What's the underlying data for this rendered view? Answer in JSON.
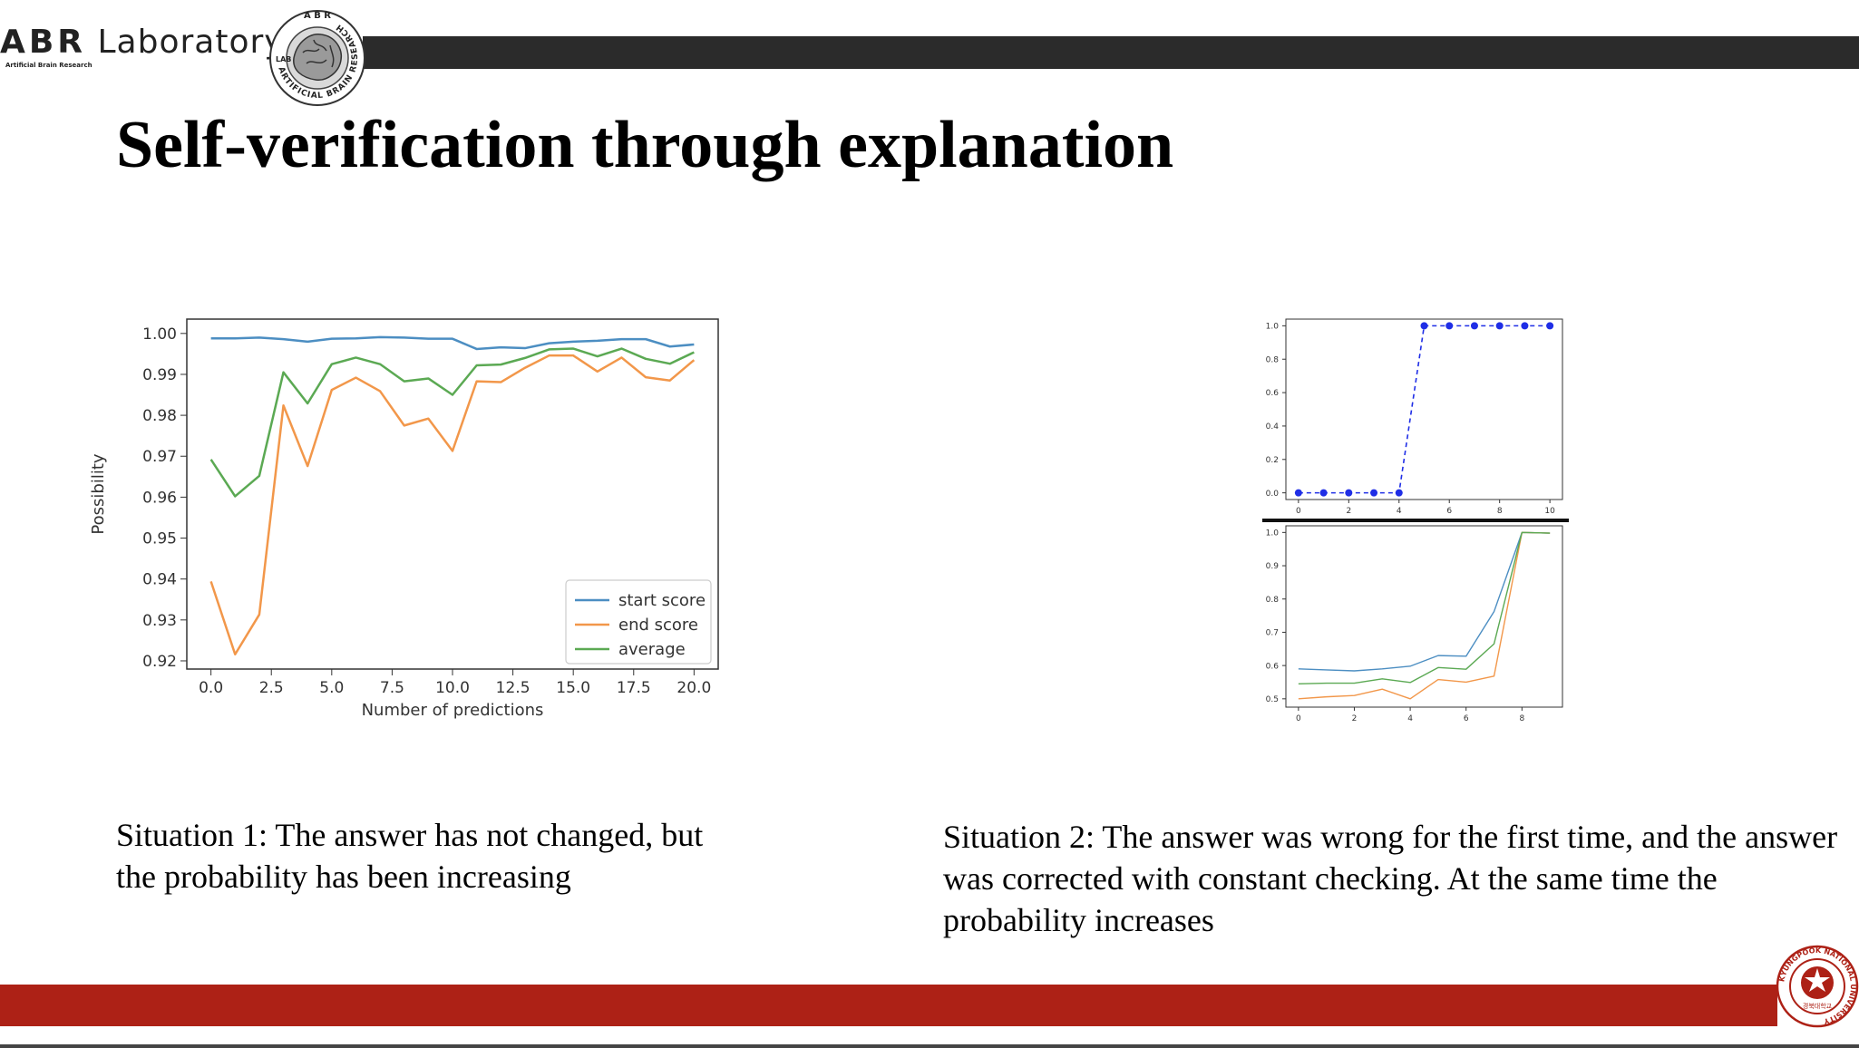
{
  "header": {
    "logo_abr": "ABR",
    "logo_lab": "Laboratory",
    "logo_sub": "Artificial Brain Research",
    "seal_top": "A B R",
    "seal_ring": "ARTIFICIAL BRAIN RESEARCH",
    "seal_lab": "LAB"
  },
  "slide": {
    "title": "Self-verification through explanation",
    "caption1": "Situation 1: The answer has not changed, but the probability has been increasing",
    "caption2": "Situation 2: The answer was wrong for the first time, and the answer was corrected with constant checking. At the same time the probability increases"
  },
  "footer": {
    "university_ring": "KYUNGPOOK NATIONAL UNIVERSITY",
    "university_korean": "경북대학교",
    "accent": "#ad2116"
  },
  "chart_data": [
    {
      "type": "line",
      "title": "",
      "xlabel": "Number of predictions",
      "ylabel": "Possibility",
      "xlim": [
        -1,
        21
      ],
      "ylim": [
        0.918,
        1.0035
      ],
      "xticks": [
        "0.0",
        "2.5",
        "5.0",
        "7.5",
        "10.0",
        "12.5",
        "15.0",
        "17.5",
        "20.0"
      ],
      "yticks": [
        "0.92",
        "0.93",
        "0.94",
        "0.95",
        "0.96",
        "0.97",
        "0.98",
        "0.99",
        "1.00"
      ],
      "legend": "lower-right",
      "grid": false,
      "x": [
        0,
        1,
        2,
        3,
        4,
        5,
        6,
        7,
        8,
        9,
        10,
        11,
        12,
        13,
        14,
        15,
        16,
        17,
        18,
        19,
        20
      ],
      "series": [
        {
          "name": "start score",
          "color": "#4c8ec2",
          "values": [
            0.9988,
            0.9988,
            0.999,
            0.9986,
            0.998,
            0.9987,
            0.9988,
            0.9991,
            0.999,
            0.9987,
            0.9987,
            0.9962,
            0.9966,
            0.9964,
            0.9976,
            0.998,
            0.9982,
            0.9986,
            0.9986,
            0.9968,
            0.9973
          ]
        },
        {
          "name": "end score",
          "color": "#f2974a",
          "values": [
            0.9394,
            0.9216,
            0.9313,
            0.9824,
            0.9676,
            0.9862,
            0.9892,
            0.9859,
            0.9775,
            0.9792,
            0.9713,
            0.9883,
            0.9881,
            0.9916,
            0.9946,
            0.9946,
            0.9907,
            0.9941,
            0.9893,
            0.9885,
            0.9935
          ]
        },
        {
          "name": "average",
          "color": "#5ba953",
          "values": [
            0.9692,
            0.9602,
            0.9652,
            0.9905,
            0.9829,
            0.9925,
            0.9941,
            0.9925,
            0.9883,
            0.989,
            0.985,
            0.9922,
            0.9924,
            0.994,
            0.9961,
            0.9963,
            0.9944,
            0.9963,
            0.9938,
            0.9926,
            0.9954
          ]
        }
      ]
    },
    {
      "type": "line",
      "title": "",
      "xlabel": "",
      "ylabel": "",
      "xlim": [
        -0.5,
        10.5
      ],
      "ylim": [
        -0.04,
        1.04
      ],
      "xticks": [
        "0",
        "2",
        "4",
        "6",
        "8",
        "10"
      ],
      "yticks": [
        "0.0",
        "0.2",
        "0.4",
        "0.6",
        "0.8",
        "1.0"
      ],
      "grid": false,
      "x": [
        0,
        1,
        2,
        3,
        4,
        5,
        6,
        7,
        8,
        9,
        10
      ],
      "series": [
        {
          "color": "#1f2ee6",
          "style": "dashed-with-markers",
          "values": [
            0,
            0,
            0,
            0,
            0,
            1,
            1,
            1,
            1,
            1,
            1
          ]
        }
      ]
    },
    {
      "type": "line",
      "title": "",
      "xlabel": "",
      "ylabel": "",
      "xlim": [
        -0.45,
        9.45
      ],
      "ylim": [
        0.475,
        1.02
      ],
      "xticks": [
        "0",
        "2",
        "4",
        "6",
        "8"
      ],
      "yticks": [
        "0.5",
        "0.6",
        "0.7",
        "0.8",
        "0.9",
        "1.0"
      ],
      "grid": false,
      "x": [
        0,
        1,
        2,
        3,
        4,
        5,
        6,
        7,
        8,
        9
      ],
      "series": [
        {
          "color": "#4c8ec2",
          "values": [
            0.59,
            0.587,
            0.584,
            0.59,
            0.598,
            0.63,
            0.628,
            0.762,
            1.0,
            0.998
          ]
        },
        {
          "color": "#f2974a",
          "values": [
            0.5,
            0.506,
            0.51,
            0.529,
            0.5,
            0.558,
            0.55,
            0.568,
            1.0,
            0.998
          ]
        },
        {
          "color": "#5ba953",
          "values": [
            0.545,
            0.547,
            0.547,
            0.56,
            0.549,
            0.594,
            0.589,
            0.665,
            1.0,
            0.998
          ]
        }
      ]
    }
  ]
}
